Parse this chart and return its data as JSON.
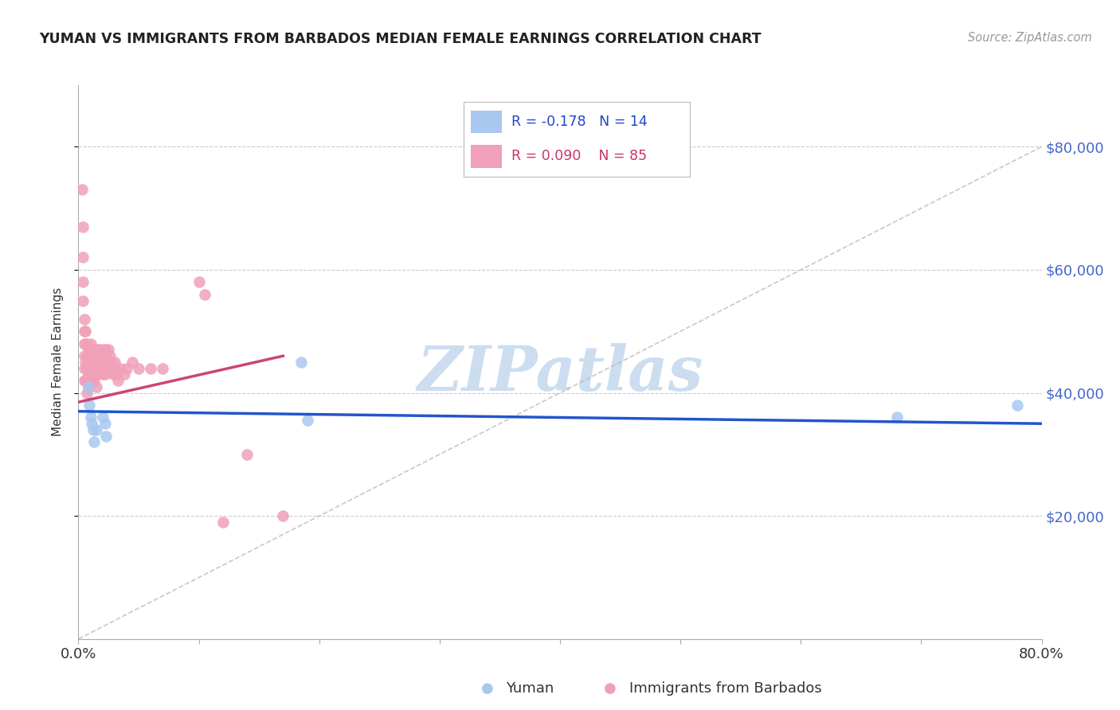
{
  "title": "YUMAN VS IMMIGRANTS FROM BARBADOS MEDIAN FEMALE EARNINGS CORRELATION CHART",
  "source": "Source: ZipAtlas.com",
  "ylabel": "Median Female Earnings",
  "xlim": [
    0.0,
    0.8
  ],
  "ylim": [
    0,
    90000
  ],
  "ytick_vals": [
    20000,
    40000,
    60000,
    80000
  ],
  "ytick_labels": [
    "$20,000",
    "$40,000",
    "$60,000",
    "$80,000"
  ],
  "xtick_positions": [
    0.0,
    0.1,
    0.2,
    0.3,
    0.4,
    0.5,
    0.6,
    0.7,
    0.8
  ],
  "xtick_labels": [
    "0.0%",
    "",
    "",
    "",
    "",
    "",
    "",
    "",
    "80.0%"
  ],
  "yuman_color": "#a8c8f0",
  "yuman_line_color": "#2255cc",
  "barbados_color": "#f0a0b8",
  "barbados_line_color": "#cc4477",
  "background_color": "#ffffff",
  "grid_color": "#cccccc",
  "title_fontsize": 12.5,
  "yuman_R": -0.178,
  "yuman_N": 14,
  "barbados_R": 0.09,
  "barbados_N": 85,
  "yuman_scatter_x": [
    0.008,
    0.009,
    0.01,
    0.011,
    0.012,
    0.013,
    0.015,
    0.02,
    0.022,
    0.023,
    0.185,
    0.19,
    0.68,
    0.78
  ],
  "yuman_scatter_y": [
    41000,
    38000,
    36000,
    35000,
    34000,
    32000,
    34000,
    36000,
    35000,
    33000,
    45000,
    35500,
    36000,
    38000
  ],
  "barbados_scatter_x": [
    0.003,
    0.004,
    0.004,
    0.004,
    0.004,
    0.005,
    0.005,
    0.005,
    0.005,
    0.005,
    0.005,
    0.006,
    0.006,
    0.006,
    0.006,
    0.007,
    0.007,
    0.007,
    0.007,
    0.007,
    0.008,
    0.008,
    0.008,
    0.008,
    0.009,
    0.009,
    0.009,
    0.01,
    0.01,
    0.01,
    0.01,
    0.011,
    0.011,
    0.012,
    0.012,
    0.013,
    0.013,
    0.014,
    0.014,
    0.015,
    0.015,
    0.015,
    0.015,
    0.016,
    0.016,
    0.017,
    0.017,
    0.018,
    0.018,
    0.019,
    0.019,
    0.02,
    0.02,
    0.02,
    0.021,
    0.021,
    0.022,
    0.022,
    0.022,
    0.023,
    0.023,
    0.024,
    0.025,
    0.025,
    0.026,
    0.027,
    0.028,
    0.029,
    0.03,
    0.03,
    0.031,
    0.032,
    0.033,
    0.035,
    0.038,
    0.04,
    0.045,
    0.05,
    0.06,
    0.07,
    0.1,
    0.105,
    0.12,
    0.14,
    0.17
  ],
  "barbados_scatter_y": [
    73000,
    67000,
    62000,
    58000,
    55000,
    52000,
    50000,
    48000,
    46000,
    44000,
    42000,
    50000,
    48000,
    45000,
    42000,
    48000,
    46000,
    44000,
    42000,
    40000,
    47000,
    45000,
    43000,
    41000,
    46000,
    44000,
    42000,
    48000,
    46000,
    44000,
    42000,
    47000,
    44000,
    46000,
    43000,
    45000,
    42000,
    46000,
    43000,
    47000,
    45000,
    43000,
    41000,
    46000,
    44000,
    47000,
    45000,
    46000,
    44000,
    46000,
    44000,
    47000,
    45000,
    43000,
    46000,
    44000,
    47000,
    45000,
    43000,
    46000,
    44000,
    45000,
    47000,
    45000,
    46000,
    45000,
    44000,
    43000,
    45000,
    43000,
    44000,
    43000,
    42000,
    44000,
    43000,
    44000,
    45000,
    44000,
    44000,
    44000,
    58000,
    56000,
    19000,
    30000,
    20000
  ],
  "ref_line_x": [
    0.0,
    0.8
  ],
  "ref_line_y": [
    0,
    80000
  ],
  "watermark_text": "ZIPatlas",
  "watermark_color": "#ccddf0"
}
